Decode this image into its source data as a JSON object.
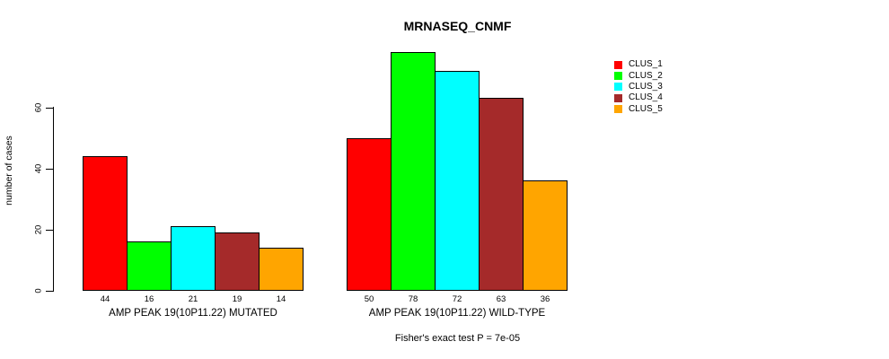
{
  "title": "MRNASEQ_CNMF",
  "y_axis": {
    "label": "number of cases"
  },
  "footer": "Fisher's exact test P = 7e-05",
  "legend": {
    "entries": [
      {
        "label": "CLUS_1",
        "color": "#FF0000"
      },
      {
        "label": "CLUS_2",
        "color": "#00FF00"
      },
      {
        "label": "CLUS_3",
        "color": "#00FFFF"
      },
      {
        "label": "CLUS_4",
        "color": "#A52A2A"
      },
      {
        "label": "CLUS_5",
        "color": "#FFA500"
      }
    ]
  },
  "chart_data": {
    "type": "bar",
    "title": "MRNASEQ_CNMF",
    "ylabel": "number of cases",
    "xlabel": "",
    "ylim": [
      0,
      80
    ],
    "yticks": [
      0,
      20,
      40,
      60
    ],
    "grid": false,
    "legend_position": "right-outside-top",
    "bar_value_labels_shown": true,
    "categories": [
      "AMP PEAK 19(10P11.22) MUTATED",
      "AMP PEAK 19(10P11.22) WILD-TYPE"
    ],
    "series": [
      {
        "name": "CLUS_1",
        "color": "#FF0000",
        "values": [
          44,
          50
        ]
      },
      {
        "name": "CLUS_2",
        "color": "#00FF00",
        "values": [
          16,
          78
        ]
      },
      {
        "name": "CLUS_3",
        "color": "#00FFFF",
        "values": [
          21,
          72
        ]
      },
      {
        "name": "CLUS_4",
        "color": "#A52A2A",
        "values": [
          19,
          63
        ]
      },
      {
        "name": "CLUS_5",
        "color": "#FFA500",
        "values": [
          14,
          36
        ]
      }
    ],
    "annotation": "Fisher's exact test P = 7e-05"
  }
}
